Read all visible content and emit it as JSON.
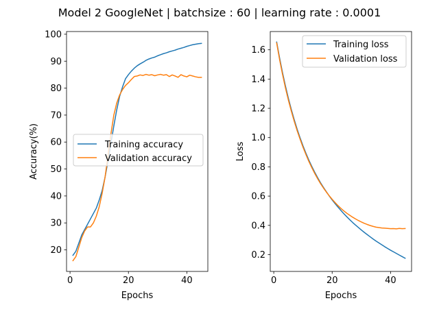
{
  "suptitle": "Model 2 GoogleNet | batchsize : 60 | learning rate : 0.0001",
  "colors": {
    "series_1": "#1f77b4",
    "series_2": "#ff7f0e"
  },
  "chart_data": [
    {
      "type": "line",
      "title": "",
      "xlabel": "Epochs",
      "ylabel": "Accuracy(%)",
      "xlim": [
        -1.2,
        47.2
      ],
      "ylim": [
        12,
        101
      ],
      "xticks": [
        0,
        20,
        40
      ],
      "yticks": [
        20,
        30,
        40,
        50,
        60,
        70,
        80,
        90,
        100
      ],
      "grid": false,
      "legend": "center-right",
      "x": [
        1,
        2,
        3,
        4,
        5,
        6,
        7,
        8,
        9,
        10,
        11,
        12,
        13,
        14,
        15,
        16,
        17,
        18,
        19,
        20,
        21,
        22,
        23,
        24,
        25,
        26,
        27,
        28,
        29,
        30,
        31,
        32,
        33,
        34,
        35,
        36,
        37,
        38,
        39,
        40,
        41,
        42,
        43,
        44,
        45
      ],
      "series": [
        {
          "name": "Training accuracy",
          "color": "#1f77b4",
          "values": [
            18,
            19.5,
            22.5,
            25.5,
            27.5,
            29.5,
            31.5,
            33.5,
            35.5,
            38.5,
            42,
            47,
            53,
            59.5,
            66,
            72,
            77,
            80.5,
            83.5,
            85,
            86.3,
            87.4,
            88.3,
            89,
            89.6,
            90.3,
            90.8,
            91.2,
            91.5,
            92,
            92.4,
            92.8,
            93.1,
            93.5,
            93.8,
            94.1,
            94.5,
            94.8,
            95.1,
            95.5,
            95.8,
            96.1,
            96.3,
            96.5,
            96.6
          ]
        },
        {
          "name": "Validation accuracy",
          "color": "#ff7f0e",
          "values": [
            16,
            17.5,
            21,
            24.5,
            27,
            28.5,
            28.5,
            30,
            32.5,
            36,
            41,
            47,
            55,
            63,
            70,
            74.5,
            77.5,
            79.5,
            81,
            82,
            83.2,
            84.3,
            84.5,
            84.9,
            84.7,
            85.1,
            84.8,
            85,
            84.6,
            84.9,
            85.1,
            84.8,
            85,
            84.3,
            84.9,
            84.5,
            84,
            85,
            84.5,
            84.2,
            84.8,
            84.5,
            84.2,
            84,
            84
          ]
        }
      ]
    },
    {
      "type": "line",
      "title": "",
      "xlabel": "Epochs",
      "ylabel": "Loss",
      "xlim": [
        -1.2,
        47.2
      ],
      "ylim": [
        0.085,
        1.725
      ],
      "xticks": [
        0,
        20,
        40
      ],
      "yticks": [
        0.2,
        0.4,
        0.6,
        0.8,
        1.0,
        1.2,
        1.4,
        1.6
      ],
      "ytick_labels": [
        "0.2",
        "0.4",
        "0.6",
        "0.8",
        "1.0",
        "1.2",
        "1.4",
        "1.6"
      ],
      "grid": false,
      "legend": "upper-right",
      "x": [
        1,
        2,
        3,
        4,
        5,
        6,
        7,
        8,
        9,
        10,
        11,
        12,
        13,
        14,
        15,
        16,
        17,
        18,
        19,
        20,
        21,
        22,
        23,
        24,
        25,
        26,
        27,
        28,
        29,
        30,
        31,
        32,
        33,
        34,
        35,
        36,
        37,
        38,
        39,
        40,
        41,
        42,
        43,
        44,
        45
      ],
      "series": [
        {
          "name": "Training loss",
          "color": "#1f77b4",
          "values": [
            1.653,
            1.544,
            1.444,
            1.353,
            1.269,
            1.193,
            1.123,
            1.058,
            0.999,
            0.944,
            0.894,
            0.847,
            0.804,
            0.764,
            0.727,
            0.692,
            0.66,
            0.63,
            0.601,
            0.574,
            0.549,
            0.525,
            0.502,
            0.48,
            0.459,
            0.439,
            0.42,
            0.402,
            0.385,
            0.368,
            0.352,
            0.337,
            0.322,
            0.307,
            0.293,
            0.28,
            0.267,
            0.254,
            0.242,
            0.23,
            0.219,
            0.208,
            0.197,
            0.186,
            0.175
          ]
        },
        {
          "name": "Validation loss",
          "color": "#ff7f0e",
          "values": [
            1.647,
            1.533,
            1.432,
            1.34,
            1.257,
            1.182,
            1.112,
            1.048,
            0.99,
            0.935,
            0.885,
            0.838,
            0.796,
            0.756,
            0.72,
            0.686,
            0.656,
            0.628,
            0.602,
            0.578,
            0.556,
            0.535,
            0.516,
            0.499,
            0.483,
            0.469,
            0.456,
            0.444,
            0.433,
            0.423,
            0.414,
            0.406,
            0.399,
            0.393,
            0.388,
            0.385,
            0.382,
            0.381,
            0.379,
            0.377,
            0.378,
            0.376,
            0.379,
            0.377,
            0.378
          ]
        }
      ]
    }
  ]
}
